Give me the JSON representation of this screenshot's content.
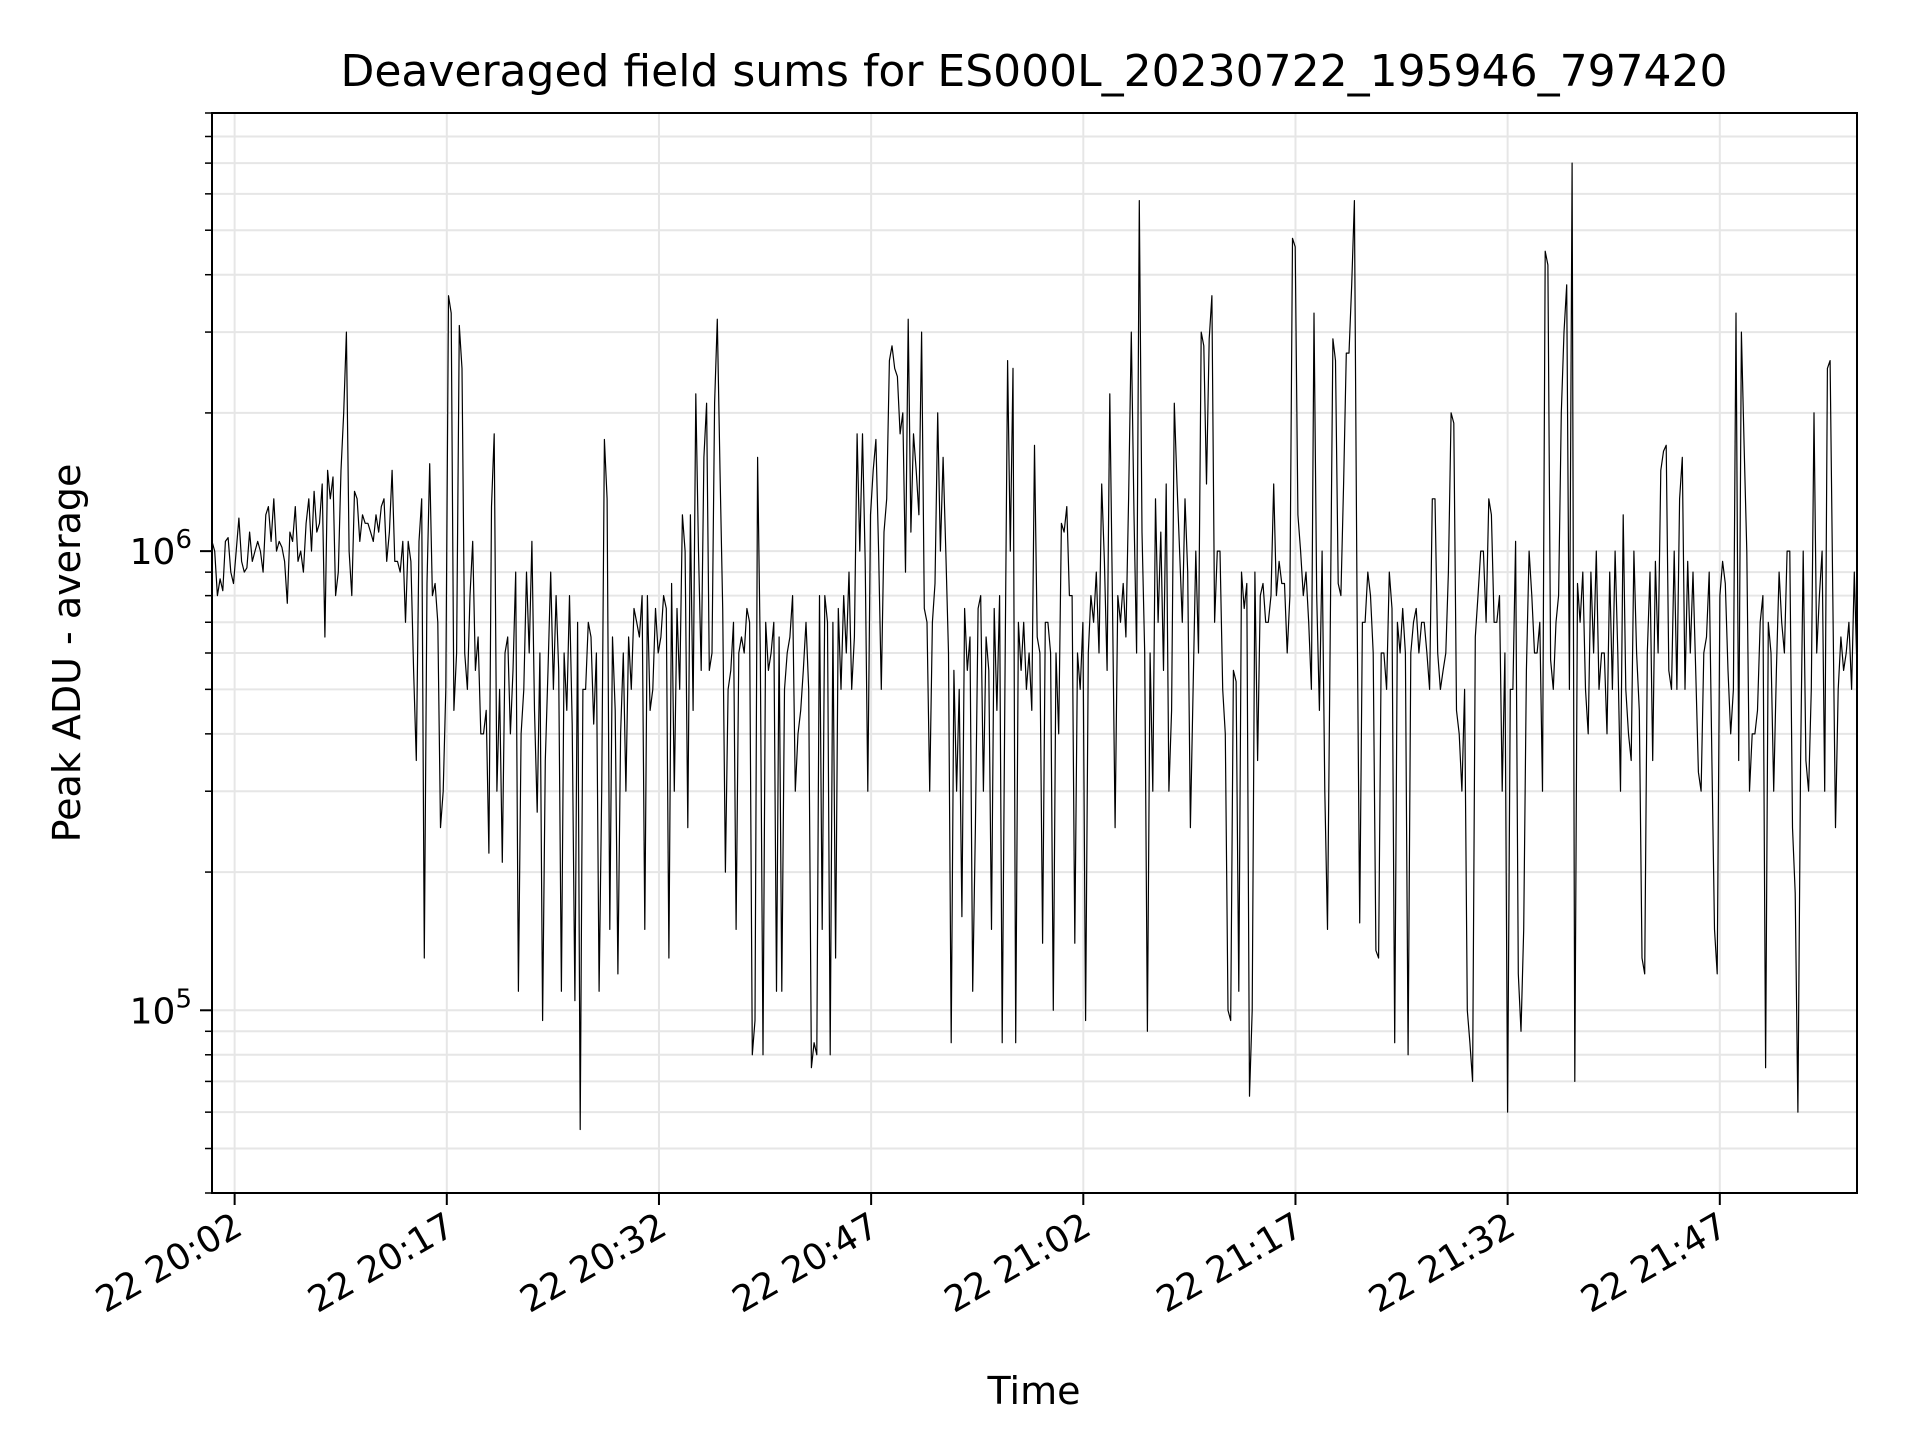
{
  "chart_data": {
    "type": "line",
    "title": "Deaveraged field sums for ES000L_20230722_195946_797420",
    "xlabel": "Time",
    "ylabel": "Peak ADU - average",
    "yscale": "log",
    "ylim": [
      40000,
      9000000
    ],
    "xlim": [
      "2023-07-22T20:00:24",
      "2023-07-22T21:56:42"
    ],
    "x_ticks": [
      {
        "label": "22 20:02",
        "time": "2023-07-22T20:02:00"
      },
      {
        "label": "22 20:17",
        "time": "2023-07-22T20:17:00"
      },
      {
        "label": "22 20:32",
        "time": "2023-07-22T20:32:00"
      },
      {
        "label": "22 20:47",
        "time": "2023-07-22T20:47:00"
      },
      {
        "label": "22 21:02",
        "time": "2023-07-22T21:02:00"
      },
      {
        "label": "22 21:17",
        "time": "2023-07-22T21:17:00"
      },
      {
        "label": "22 21:32",
        "time": "2023-07-22T21:32:00"
      },
      {
        "label": "22 21:47",
        "time": "2023-07-22T21:47:00"
      }
    ],
    "y_ticks": [
      {
        "base": "10",
        "exp": "5",
        "value": 100000
      },
      {
        "base": "10",
        "exp": "6",
        "value": 1000000
      }
    ],
    "grid": true,
    "legend": "none",
    "line_color": "#000000",
    "series": [
      {
        "x_start": "2023-07-22T20:00:24",
        "x_end": "2023-07-22T21:56:42",
        "values": [
          1050000,
          1000000,
          800000,
          870000,
          820000,
          1050000,
          1070000,
          900000,
          850000,
          1000000,
          1180000,
          950000,
          900000,
          920000,
          1100000,
          950000,
          1000000,
          1050000,
          1000000,
          900000,
          1200000,
          1250000,
          1050000,
          1300000,
          1000000,
          1050000,
          1020000,
          950000,
          770000,
          1100000,
          1050000,
          1250000,
          950000,
          1000000,
          900000,
          1150000,
          1300000,
          1000000,
          1350000,
          1100000,
          1150000,
          1400000,
          650000,
          1500000,
          1300000,
          1450000,
          800000,
          900000,
          1500000,
          2000000,
          3000000,
          1000000,
          800000,
          1350000,
          1300000,
          1050000,
          1200000,
          1150000,
          1150000,
          1100000,
          1050000,
          1200000,
          1100000,
          1250000,
          1300000,
          950000,
          1100000,
          1500000,
          950000,
          950000,
          900000,
          1050000,
          700000,
          1050000,
          950000,
          550000,
          350000,
          1050000,
          1300000,
          130000,
          850000,
          1550000,
          800000,
          850000,
          700000,
          250000,
          300000,
          500000,
          3600000,
          3300000,
          450000,
          600000,
          3100000,
          2500000,
          600000,
          500000,
          800000,
          1050000,
          550000,
          650000,
          400000,
          400000,
          450000,
          220000,
          1250000,
          1800000,
          300000,
          500000,
          210000,
          600000,
          650000,
          400000,
          550000,
          900000,
          110000,
          400000,
          500000,
          900000,
          600000,
          1050000,
          450000,
          270000,
          600000,
          95000,
          350000,
          550000,
          900000,
          500000,
          800000,
          550000,
          110000,
          600000,
          450000,
          800000,
          420000,
          105000,
          700000,
          55000,
          500000,
          500000,
          700000,
          650000,
          420000,
          600000,
          110000,
          300000,
          1750000,
          1300000,
          150000,
          650000,
          450000,
          120000,
          400000,
          600000,
          300000,
          650000,
          500000,
          750000,
          700000,
          650000,
          800000,
          150000,
          800000,
          450000,
          500000,
          750000,
          600000,
          650000,
          800000,
          750000,
          130000,
          850000,
          300000,
          750000,
          500000,
          1200000,
          1000000,
          250000,
          1200000,
          450000,
          2200000,
          1000000,
          550000,
          1600000,
          2100000,
          550000,
          600000,
          2100000,
          3200000,
          1500000,
          750000,
          200000,
          500000,
          550000,
          700000,
          150000,
          600000,
          650000,
          600000,
          750000,
          700000,
          80000,
          95000,
          1600000,
          600000,
          80000,
          700000,
          550000,
          600000,
          700000,
          110000,
          650000,
          110000,
          500000,
          600000,
          650000,
          800000,
          300000,
          400000,
          450000,
          550000,
          700000,
          500000,
          75000,
          85000,
          80000,
          800000,
          150000,
          800000,
          700000,
          80000,
          700000,
          130000,
          750000,
          500000,
          800000,
          600000,
          900000,
          500000,
          650000,
          1800000,
          1000000,
          1800000,
          950000,
          300000,
          1200000,
          1500000,
          1750000,
          1000000,
          500000,
          1100000,
          1300000,
          2600000,
          2800000,
          2500000,
          2400000,
          1800000,
          2000000,
          900000,
          3200000,
          1100000,
          1800000,
          1500000,
          1200000,
          3000000,
          750000,
          700000,
          300000,
          700000,
          850000,
          2000000,
          1000000,
          1600000,
          1000000,
          600000,
          85000,
          550000,
          300000,
          500000,
          160000,
          750000,
          550000,
          650000,
          110000,
          250000,
          750000,
          800000,
          300000,
          650000,
          550000,
          150000,
          750000,
          450000,
          800000,
          85000,
          500000,
          2600000,
          1000000,
          2500000,
          85000,
          700000,
          550000,
          700000,
          500000,
          600000,
          450000,
          1700000,
          650000,
          600000,
          140000,
          700000,
          700000,
          600000,
          100000,
          600000,
          400000,
          1150000,
          1100000,
          1250000,
          800000,
          800000,
          140000,
          600000,
          500000,
          700000,
          95000,
          600000,
          800000,
          700000,
          900000,
          600000,
          1400000,
          950000,
          550000,
          2200000,
          800000,
          250000,
          800000,
          700000,
          850000,
          650000,
          1300000,
          3000000,
          1200000,
          600000,
          5800000,
          1100000,
          600000,
          90000,
          600000,
          300000,
          1300000,
          700000,
          1100000,
          550000,
          1400000,
          300000,
          450000,
          2100000,
          1400000,
          1000000,
          700000,
          1300000,
          900000,
          250000,
          500000,
          1000000,
          600000,
          3000000,
          2800000,
          1400000,
          2900000,
          3600000,
          700000,
          1000000,
          1000000,
          500000,
          400000,
          100000,
          95000,
          550000,
          520000,
          110000,
          900000,
          750000,
          850000,
          65000,
          100000,
          900000,
          350000,
          800000,
          850000,
          700000,
          700000,
          800000,
          1400000,
          800000,
          950000,
          850000,
          850000,
          600000,
          800000,
          4800000,
          4600000,
          1200000,
          1000000,
          800000,
          900000,
          700000,
          500000,
          3300000,
          800000,
          450000,
          1000000,
          300000,
          150000,
          650000,
          2900000,
          2600000,
          850000,
          800000,
          1400000,
          2700000,
          2700000,
          3800000,
          5800000,
          800000,
          155000,
          700000,
          700000,
          900000,
          800000,
          600000,
          135000,
          130000,
          600000,
          600000,
          500000,
          900000,
          750000,
          85000,
          700000,
          600000,
          750000,
          600000,
          80000,
          600000,
          700000,
          750000,
          600000,
          700000,
          700000,
          600000,
          500000,
          1300000,
          1300000,
          600000,
          500000,
          550000,
          600000,
          900000,
          2000000,
          1900000,
          450000,
          400000,
          300000,
          500000,
          100000,
          85000,
          70000,
          650000,
          800000,
          1000000,
          1000000,
          700000,
          1300000,
          1200000,
          700000,
          700000,
          800000,
          300000,
          600000,
          60000,
          500000,
          500000,
          1050000,
          120000,
          90000,
          150000,
          550000,
          1000000,
          800000,
          600000,
          600000,
          700000,
          300000,
          4500000,
          4200000,
          580000,
          500000,
          700000,
          800000,
          2000000,
          3000000,
          3800000,
          500000,
          7000000,
          70000,
          850000,
          700000,
          900000,
          500000,
          400000,
          900000,
          600000,
          1000000,
          500000,
          600000,
          600000,
          400000,
          900000,
          500000,
          1000000,
          600000,
          300000,
          1200000,
          500000,
          400000,
          350000,
          1000000,
          600000,
          450000,
          130000,
          120000,
          600000,
          900000,
          350000,
          950000,
          600000,
          1500000,
          1650000,
          1700000,
          550000,
          500000,
          1000000,
          500000,
          1300000,
          1600000,
          500000,
          950000,
          600000,
          900000,
          550000,
          330000,
          300000,
          600000,
          650000,
          900000,
          350000,
          150000,
          120000,
          800000,
          950000,
          850000,
          550000,
          400000,
          500000,
          3300000,
          350000,
          3000000,
          1700000,
          1000000,
          300000,
          400000,
          400000,
          450000,
          700000,
          800000,
          75000,
          700000,
          600000,
          300000,
          550000,
          900000,
          700000,
          600000,
          1000000,
          1000000,
          250000,
          180000,
          60000,
          350000,
          1000000,
          350000,
          300000,
          500000,
          2000000,
          600000,
          800000,
          1000000,
          300000,
          2500000,
          2600000,
          800000,
          250000,
          500000,
          650000,
          550000,
          600000,
          700000,
          500000,
          900000,
          550000
        ]
      }
    ]
  }
}
